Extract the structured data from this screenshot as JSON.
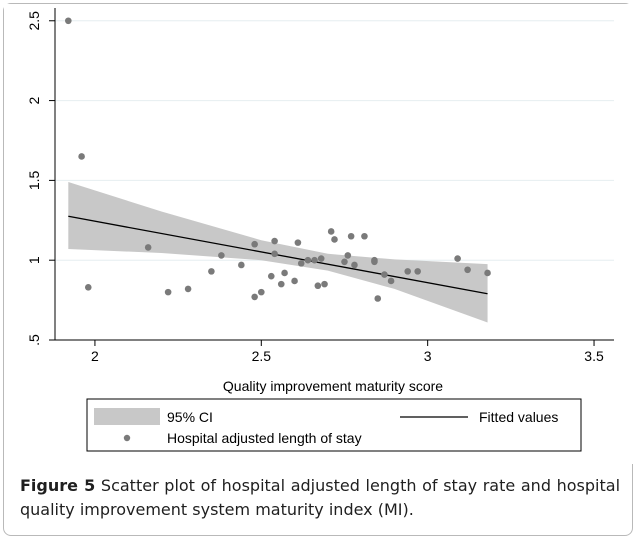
{
  "chart_data": {
    "type": "scatter",
    "xlabel": "Quality improvement maturity score",
    "ylabel": "",
    "xlim": [
      1.88,
      3.56
    ],
    "ylim": [
      0.5,
      2.58
    ],
    "xticks": [
      "2",
      "2.5",
      "3",
      "3.5"
    ],
    "xtick_values": [
      2,
      2.5,
      3,
      3.5
    ],
    "yticks": [
      ".5",
      "1",
      "1.5",
      "2",
      "2.5"
    ],
    "ytick_values": [
      0.5,
      1,
      1.5,
      2,
      2.5
    ],
    "grid": true,
    "legend_position": "bottom",
    "legend": {
      "ci": "95% CI",
      "fit": "Fitted values",
      "scatter": "Hospital adjusted length of stay"
    },
    "colors": {
      "ci_band": "#c8c8c8",
      "points": "#7a7a7a",
      "fit_line": "#000000",
      "grid": "#e6eef0"
    },
    "fitted": {
      "x": [
        1.92,
        3.18
      ],
      "y": [
        1.275,
        0.79
      ]
    },
    "ci_band": {
      "x": [
        1.92,
        2.2,
        2.5,
        2.7,
        2.9,
        3.18
      ],
      "lower": [
        1.07,
        1.045,
        1.0,
        0.935,
        0.82,
        0.61
      ],
      "upper": [
        1.49,
        1.305,
        1.125,
        1.04,
        1.005,
        0.975
      ]
    },
    "series": [
      {
        "name": "Hospital adjusted length of stay",
        "points": [
          [
            1.92,
            2.5
          ],
          [
            1.96,
            1.65
          ],
          [
            1.98,
            0.83
          ],
          [
            2.16,
            1.08
          ],
          [
            2.22,
            0.8
          ],
          [
            2.28,
            0.82
          ],
          [
            2.35,
            0.93
          ],
          [
            2.38,
            1.03
          ],
          [
            2.44,
            0.97
          ],
          [
            2.48,
            1.1
          ],
          [
            2.48,
            0.77
          ],
          [
            2.5,
            0.8
          ],
          [
            2.53,
            0.9
          ],
          [
            2.54,
            1.12
          ],
          [
            2.54,
            1.04
          ],
          [
            2.56,
            0.85
          ],
          [
            2.57,
            0.92
          ],
          [
            2.6,
            0.87
          ],
          [
            2.61,
            1.11
          ],
          [
            2.62,
            0.98
          ],
          [
            2.64,
            1.0
          ],
          [
            2.66,
            1.0
          ],
          [
            2.67,
            0.84
          ],
          [
            2.68,
            1.01
          ],
          [
            2.69,
            0.85
          ],
          [
            2.71,
            1.18
          ],
          [
            2.72,
            1.13
          ],
          [
            2.75,
            0.99
          ],
          [
            2.76,
            1.03
          ],
          [
            2.77,
            1.15
          ],
          [
            2.78,
            0.97
          ],
          [
            2.81,
            1.15
          ],
          [
            2.84,
            1.0
          ],
          [
            2.84,
            0.99
          ],
          [
            2.85,
            0.76
          ],
          [
            2.87,
            0.91
          ],
          [
            2.89,
            0.87
          ],
          [
            2.94,
            0.93
          ],
          [
            2.97,
            0.93
          ],
          [
            3.09,
            1.01
          ],
          [
            3.12,
            0.94
          ],
          [
            3.18,
            0.92
          ]
        ]
      }
    ]
  },
  "caption": {
    "label": "Figure 5",
    "text": "Scatter plot of hospital adjusted length of stay rate and hospital quality improvement system maturity index (MI)."
  }
}
